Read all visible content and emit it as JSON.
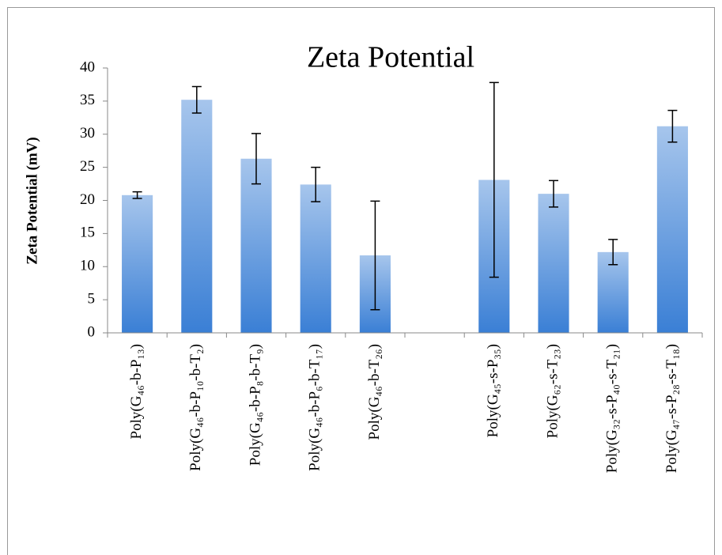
{
  "chart_data": {
    "type": "bar",
    "title": "Zeta Potential",
    "y_label": "Zeta Potential (mV)",
    "categories": [
      "Poly(G₄₆-b-P₁₃)",
      "Poly(G₄₆-b-P₁₀-b-T₂)",
      "Poly(G₄₆-b-P₈-b-T₉)",
      "Poly(G₄₆-b-P₆-b-T₁₇)",
      "Poly(G₄₆-b-T₂₆)",
      null,
      "Poly(G₄₅-s-P₃₅)",
      "Poly(G₆₂-s-T₂₃)",
      "Poly(G₃₂-s-P₄₀-s-T₂₁)",
      "Poly(G₄₇-s-P₂₈-s-T₁₈)"
    ],
    "values": [
      20.8,
      35.2,
      26.3,
      22.4,
      11.7,
      null,
      23.1,
      21.0,
      12.2,
      31.2
    ],
    "errors": [
      0.5,
      2.0,
      3.8,
      2.6,
      8.2,
      null,
      14.7,
      2.0,
      1.9,
      2.4
    ],
    "color": "#3a7fd5",
    "ylim": [
      0,
      40
    ],
    "yticks": [
      0,
      5,
      10,
      15,
      20,
      25,
      30,
      35,
      40
    ],
    "grid": false
  }
}
